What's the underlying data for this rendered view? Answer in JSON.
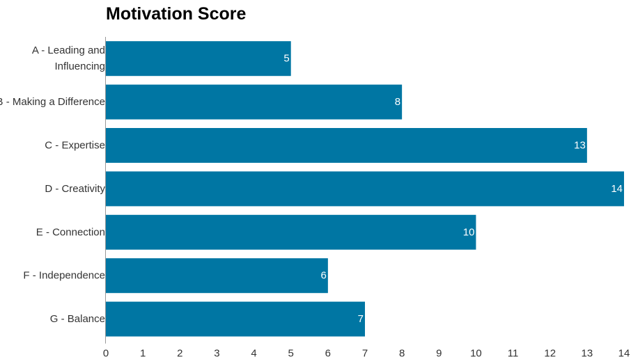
{
  "chart_data": {
    "type": "bar",
    "orientation": "horizontal",
    "title": "Motivation Score",
    "categories": [
      "A - Leading and Influencing",
      "B - Making a Difference",
      "C - Expertise",
      "D - Creativity",
      "E - Connection",
      "F - Independence",
      "G - Balance"
    ],
    "category_lines": [
      [
        "A - Leading and",
        "Influencing"
      ],
      [
        "B - Making a Difference"
      ],
      [
        "C - Expertise"
      ],
      [
        "D - Creativity"
      ],
      [
        "E - Connection"
      ],
      [
        "F - Independence"
      ],
      [
        "G - Balance"
      ]
    ],
    "values": [
      5,
      8,
      13,
      14,
      10,
      6,
      7
    ],
    "xlabel": "",
    "ylabel": "",
    "xlim": [
      0,
      14
    ],
    "x_ticks": [
      0,
      1,
      2,
      3,
      4,
      5,
      6,
      7,
      8,
      9,
      10,
      11,
      12,
      13,
      14
    ],
    "grid": false,
    "legend": "none",
    "data_labels": true,
    "bar_color": "#0076A3",
    "data_label_color": "#FFFFFF",
    "axis_color": "#999999",
    "text_color": "#333333"
  }
}
